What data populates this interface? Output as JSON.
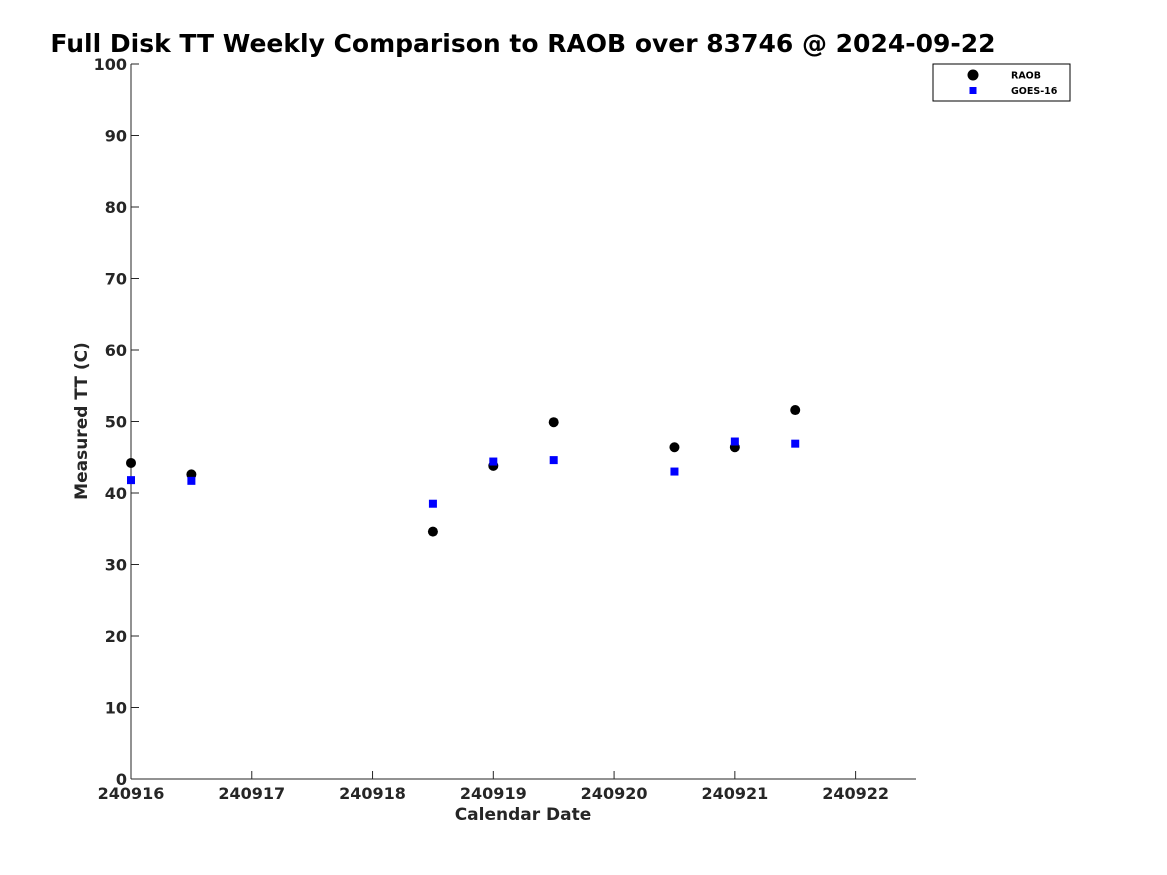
{
  "chart_data": {
    "type": "scatter",
    "title": "Full Disk TT Weekly Comparison to RAOB over 83746 @ 2024-09-22",
    "xlabel": "Calendar Date",
    "ylabel": "Measured TT (C)",
    "xlim": [
      240916,
      240922.5
    ],
    "ylim": [
      0,
      100
    ],
    "x_ticks": [
      {
        "value": 240916,
        "label": "240916"
      },
      {
        "value": 240917,
        "label": "240917"
      },
      {
        "value": 240918,
        "label": "240918"
      },
      {
        "value": 240919,
        "label": "240919"
      },
      {
        "value": 240920,
        "label": "240920"
      },
      {
        "value": 240921,
        "label": "240921"
      },
      {
        "value": 240922,
        "label": "240922"
      }
    ],
    "y_ticks": [
      {
        "value": 0,
        "label": "0"
      },
      {
        "value": 10,
        "label": "10"
      },
      {
        "value": 20,
        "label": "20"
      },
      {
        "value": 30,
        "label": "30"
      },
      {
        "value": 40,
        "label": "40"
      },
      {
        "value": 50,
        "label": "50"
      },
      {
        "value": 60,
        "label": "60"
      },
      {
        "value": 70,
        "label": "70"
      },
      {
        "value": 80,
        "label": "80"
      },
      {
        "value": 90,
        "label": "90"
      },
      {
        "value": 100,
        "label": "100"
      }
    ],
    "grid": false,
    "legend_position": "top-right",
    "series": [
      {
        "name": "RAOB",
        "marker": "circle",
        "color": "#000000",
        "points": [
          {
            "x": 240916.0,
            "y": 44.2
          },
          {
            "x": 240916.5,
            "y": 42.6
          },
          {
            "x": 240918.5,
            "y": 34.6
          },
          {
            "x": 240919.0,
            "y": 43.8
          },
          {
            "x": 240919.5,
            "y": 49.9
          },
          {
            "x": 240920.5,
            "y": 46.4
          },
          {
            "x": 240921.0,
            "y": 46.4
          },
          {
            "x": 240921.5,
            "y": 51.6
          }
        ]
      },
      {
        "name": "GOES-16",
        "marker": "square",
        "color": "#0000ff",
        "points": [
          {
            "x": 240916.0,
            "y": 41.8
          },
          {
            "x": 240916.5,
            "y": 41.7
          },
          {
            "x": 240918.5,
            "y": 38.5
          },
          {
            "x": 240919.0,
            "y": 44.4
          },
          {
            "x": 240919.5,
            "y": 44.6
          },
          {
            "x": 240920.5,
            "y": 43.0
          },
          {
            "x": 240921.0,
            "y": 47.2
          },
          {
            "x": 240921.5,
            "y": 46.9
          }
        ]
      }
    ]
  }
}
